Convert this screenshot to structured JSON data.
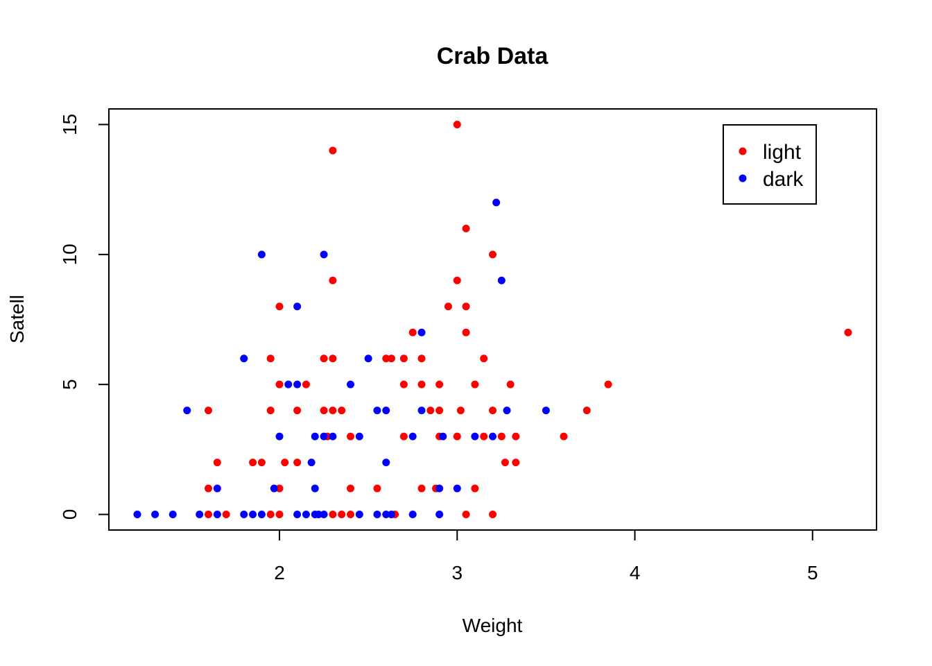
{
  "chart_data": {
    "type": "scatter",
    "title": "Crab Data",
    "xlabel": "Weight",
    "ylabel": "Satell",
    "xlim": [
      1.04,
      5.36
    ],
    "ylim": [
      -0.6,
      15.6
    ],
    "x_ticks": [
      2,
      3,
      4,
      5
    ],
    "y_ticks": [
      0,
      5,
      10,
      15
    ],
    "grid": false,
    "legend_position": "top-right",
    "series": [
      {
        "name": "light",
        "color": "#ff0000",
        "points": [
          [
            3.0,
            15
          ],
          [
            2.3,
            14
          ],
          [
            3.05,
            11
          ],
          [
            3.2,
            10
          ],
          [
            2.3,
            9
          ],
          [
            3.0,
            9
          ],
          [
            2.0,
            8
          ],
          [
            2.95,
            8
          ],
          [
            3.05,
            8
          ],
          [
            2.75,
            7
          ],
          [
            3.05,
            7
          ],
          [
            5.2,
            7
          ],
          [
            1.95,
            6
          ],
          [
            2.25,
            6
          ],
          [
            2.3,
            6
          ],
          [
            2.6,
            6
          ],
          [
            2.63,
            6
          ],
          [
            2.7,
            6
          ],
          [
            2.8,
            6
          ],
          [
            3.15,
            6
          ],
          [
            2.0,
            5
          ],
          [
            2.15,
            5
          ],
          [
            2.7,
            5
          ],
          [
            2.8,
            5
          ],
          [
            2.9,
            5
          ],
          [
            3.1,
            5
          ],
          [
            3.3,
            5
          ],
          [
            3.85,
            5
          ],
          [
            1.6,
            4
          ],
          [
            1.95,
            4
          ],
          [
            2.1,
            4
          ],
          [
            2.25,
            4
          ],
          [
            2.3,
            4
          ],
          [
            2.35,
            4
          ],
          [
            2.85,
            4
          ],
          [
            2.9,
            4
          ],
          [
            3.02,
            4
          ],
          [
            3.2,
            4
          ],
          [
            3.73,
            4
          ],
          [
            2.27,
            3
          ],
          [
            2.4,
            3
          ],
          [
            2.7,
            3
          ],
          [
            2.9,
            3
          ],
          [
            3.0,
            3
          ],
          [
            3.15,
            3
          ],
          [
            3.25,
            3
          ],
          [
            3.33,
            3
          ],
          [
            3.6,
            3
          ],
          [
            1.65,
            2
          ],
          [
            1.85,
            2
          ],
          [
            1.9,
            2
          ],
          [
            2.03,
            2
          ],
          [
            2.1,
            2
          ],
          [
            3.27,
            2
          ],
          [
            3.33,
            2
          ],
          [
            1.6,
            1
          ],
          [
            2.0,
            1
          ],
          [
            2.4,
            1
          ],
          [
            2.55,
            1
          ],
          [
            2.8,
            1
          ],
          [
            2.88,
            1
          ],
          [
            3.1,
            1
          ],
          [
            1.6,
            0
          ],
          [
            1.7,
            0
          ],
          [
            1.95,
            0
          ],
          [
            2.0,
            0
          ],
          [
            2.3,
            0
          ],
          [
            2.35,
            0
          ],
          [
            2.4,
            0
          ],
          [
            2.65,
            0
          ],
          [
            3.05,
            0
          ],
          [
            3.2,
            0
          ]
        ]
      },
      {
        "name": "dark",
        "color": "#0000ff",
        "points": [
          [
            3.22,
            12
          ],
          [
            1.9,
            10
          ],
          [
            2.25,
            10
          ],
          [
            3.25,
            9
          ],
          [
            2.1,
            8
          ],
          [
            2.8,
            7
          ],
          [
            1.8,
            6
          ],
          [
            2.5,
            6
          ],
          [
            2.05,
            5
          ],
          [
            2.1,
            5
          ],
          [
            2.4,
            5
          ],
          [
            1.48,
            4
          ],
          [
            2.55,
            4
          ],
          [
            2.6,
            4
          ],
          [
            2.8,
            4
          ],
          [
            3.28,
            4
          ],
          [
            3.5,
            4
          ],
          [
            2.0,
            3
          ],
          [
            2.2,
            3
          ],
          [
            2.25,
            3
          ],
          [
            2.3,
            3
          ],
          [
            2.45,
            3
          ],
          [
            2.75,
            3
          ],
          [
            2.92,
            3
          ],
          [
            3.1,
            3
          ],
          [
            3.2,
            3
          ],
          [
            2.18,
            2
          ],
          [
            2.6,
            2
          ],
          [
            1.65,
            1
          ],
          [
            1.97,
            1
          ],
          [
            2.2,
            1
          ],
          [
            2.9,
            1
          ],
          [
            3.0,
            1
          ],
          [
            1.2,
            0
          ],
          [
            1.3,
            0
          ],
          [
            1.4,
            0
          ],
          [
            1.55,
            0
          ],
          [
            1.65,
            0
          ],
          [
            1.8,
            0
          ],
          [
            1.85,
            0
          ],
          [
            1.9,
            0
          ],
          [
            2.1,
            0
          ],
          [
            2.15,
            0
          ],
          [
            2.2,
            0
          ],
          [
            2.22,
            0
          ],
          [
            2.25,
            0
          ],
          [
            2.45,
            0
          ],
          [
            2.55,
            0
          ],
          [
            2.6,
            0
          ],
          [
            2.63,
            0
          ],
          [
            2.75,
            0
          ],
          [
            2.9,
            0
          ]
        ]
      }
    ]
  }
}
